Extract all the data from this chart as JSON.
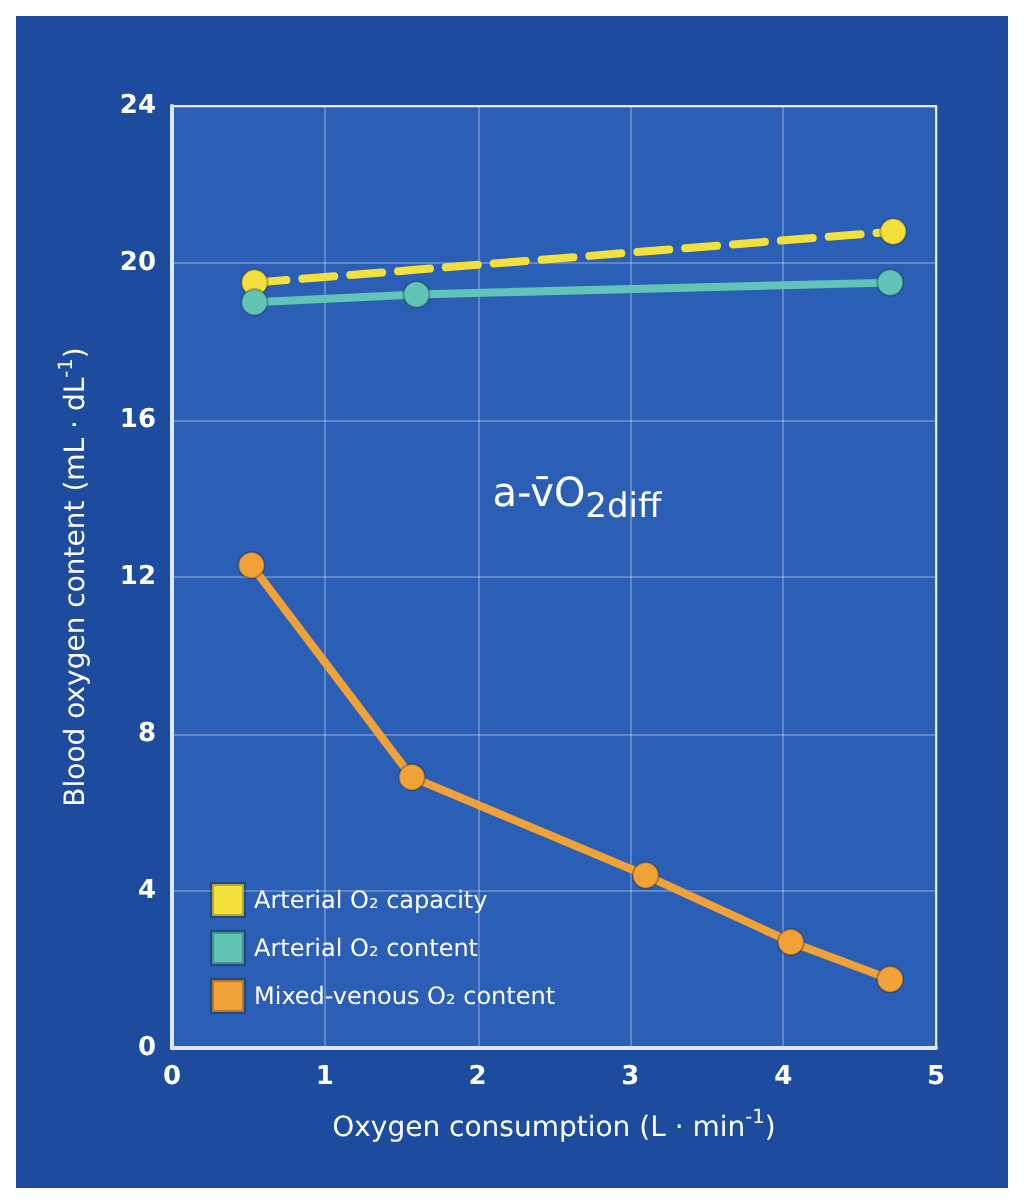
{
  "chart_data": {
    "type": "line",
    "xlabel": "Oxygen consumption (L · min$^{-1}$)",
    "ylabel": "Blood oxygen content (mL · dL$^{-1}$)",
    "annotations": [
      "a-v̄O$_{2diff}$"
    ],
    "xlim": [
      0,
      5
    ],
    "xticks": [
      0,
      1,
      2,
      3,
      4,
      5
    ],
    "ylim": [
      0,
      24
    ],
    "yticks": [
      0,
      4,
      8,
      12,
      16,
      20,
      24
    ],
    "grid": true,
    "legend": "bottom left",
    "marker": "circle",
    "series": [
      {
        "name": "Arterial O₂ capacity",
        "color": "#f2e03c",
        "x": [
          0.54,
          4.72
        ],
        "values": [
          19.5,
          20.8
        ],
        "line_style": "dashed"
      },
      {
        "name": "Arterial O₂ content",
        "color": "#62c4b6",
        "x": [
          0.54,
          1.6,
          4.7
        ],
        "values": [
          19.0,
          19.2,
          19.5
        ],
        "line_style": "solid"
      },
      {
        "name": "Mixed-venous O₂ content",
        "color": "#f0a236",
        "x": [
          0.52,
          1.57,
          3.1,
          4.05,
          4.7
        ],
        "values": [
          12.3,
          6.9,
          4.4,
          2.7,
          1.75
        ],
        "line_style": "solid"
      }
    ]
  }
}
